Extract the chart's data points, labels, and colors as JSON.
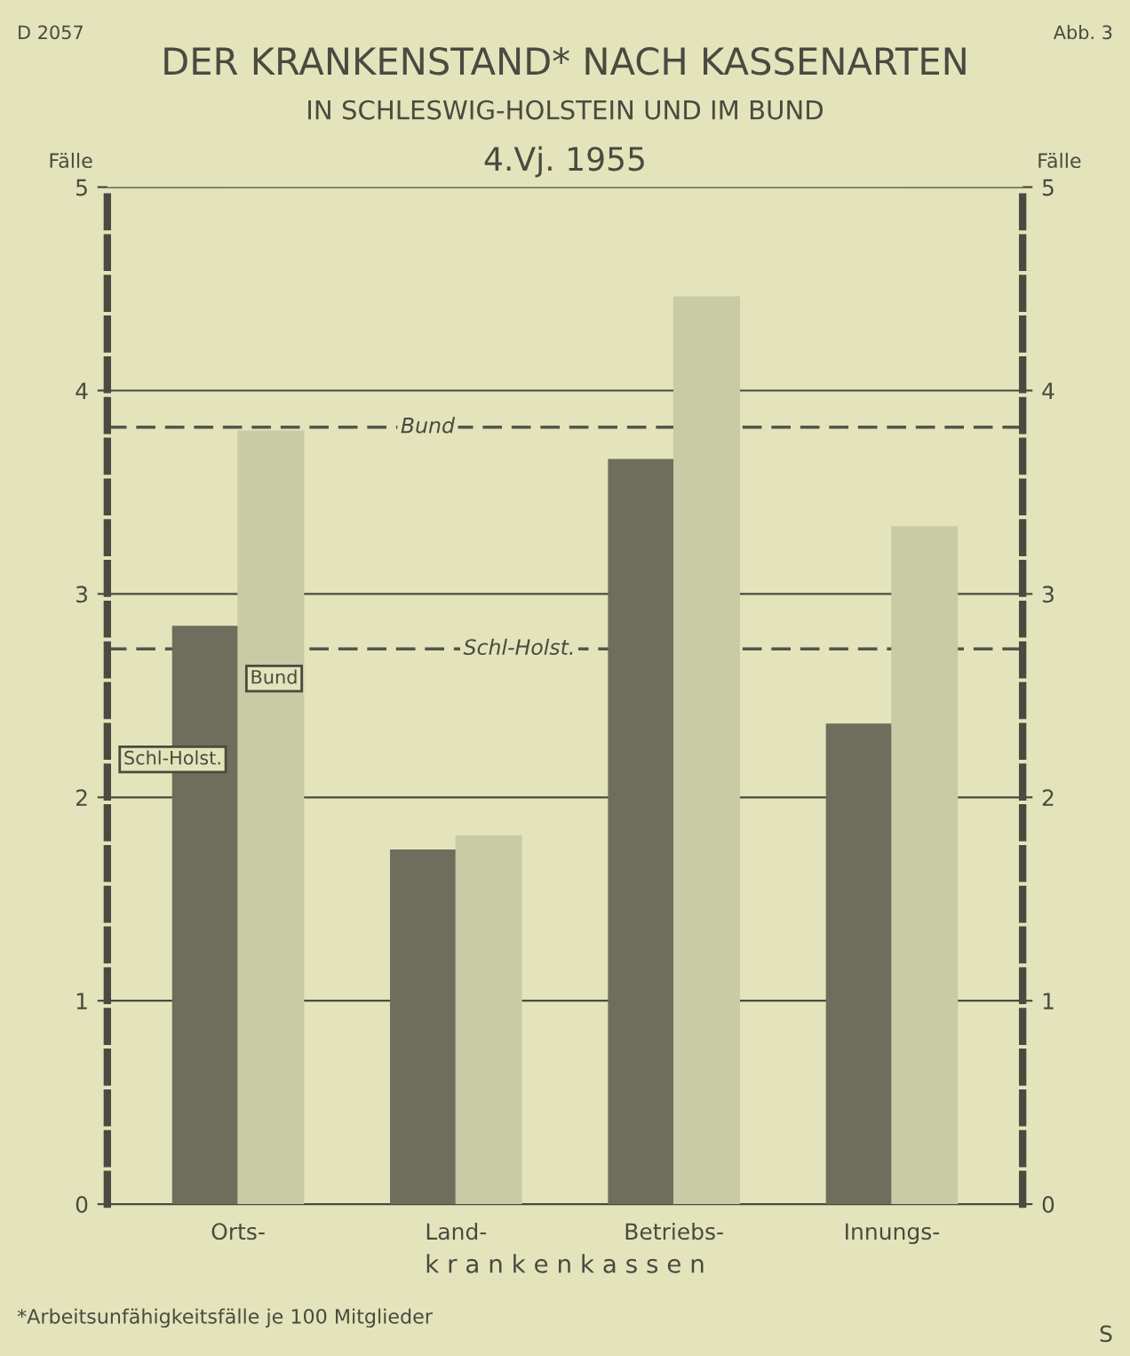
{
  "chart_data": {
    "type": "bar",
    "title": "DER KRANKENSTAND* NACH KASSENARTEN",
    "subtitle": "IN SCHLESWIG-HOLSTEIN UND IM BUND",
    "categories": [
      "Orts-",
      "Land-",
      "Betriebs-",
      "Innungs-"
    ],
    "xlabel": "k r a n k e n k a s s e n",
    "ylabel": "Fälle",
    "y2label": "Fälle",
    "series": [
      {
        "name": "Schl-Holst.",
        "color": "#6e6e5c",
        "values": [
          2.84,
          1.74,
          3.66,
          2.36
        ]
      },
      {
        "name": "Bund",
        "color": "#c9caa6",
        "values": [
          3.8,
          1.81,
          4.46,
          3.33
        ]
      }
    ],
    "ylim": [
      0,
      5
    ],
    "yticks": [
      0,
      1,
      2,
      3,
      4,
      5
    ],
    "y2lim": [
      0,
      5
    ],
    "y2ticks": [
      0,
      1,
      2,
      3,
      4,
      5
    ],
    "grid": "y",
    "legend": false,
    "ref_lines": [
      {
        "axis": "y",
        "value": 3.82,
        "label": "Bund",
        "line_style": "dashed",
        "color": "#55554a"
      },
      {
        "axis": "y",
        "value": 2.73,
        "label": "Schl-Holst.",
        "line_style": "dashed",
        "color": "#55554a"
      }
    ],
    "annotations": [
      "D 2057",
      "Abb. 3",
      "4.Vj. 1955",
      "*Arbeitsunfähigkeitsfälle je 100 Mitglieder",
      "S"
    ]
  }
}
